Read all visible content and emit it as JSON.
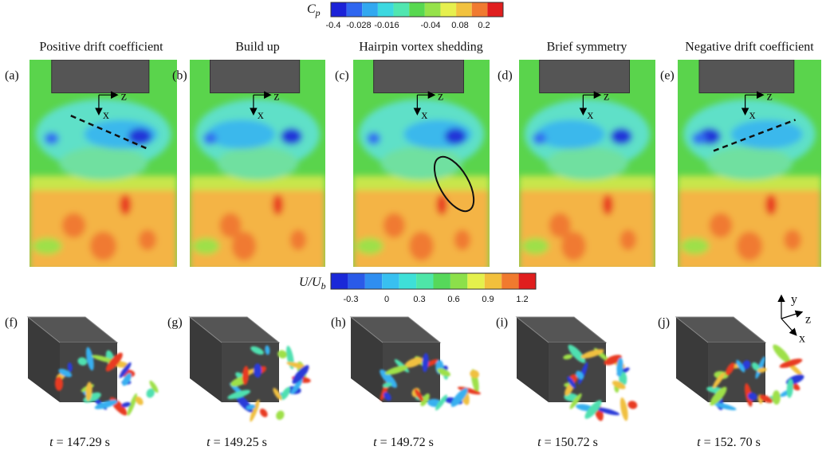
{
  "cp_colorbar": {
    "symbol": "C",
    "subscript": "p",
    "ticks": [
      "-0.4",
      "-0.028",
      "-0.016",
      "-0.04",
      "0.08",
      "0.2"
    ]
  },
  "velocity_colorbar": {
    "symbol": "U/U",
    "subscript": "b",
    "ticks": [
      "-0.3",
      "0",
      "0.3",
      "0.6",
      "0.9",
      "1.2"
    ]
  },
  "axis_x": "x",
  "axis_z": "z",
  "panels": [
    {
      "letter": "(a)",
      "title": "Positive drift coefficient"
    },
    {
      "letter": "(b)",
      "title": "Build up"
    },
    {
      "letter": "(c)",
      "title": "Hairpin vortex shedding"
    },
    {
      "letter": "(d)",
      "title": "Brief symmetry"
    },
    {
      "letter": "(e)",
      "title": "Negative drift coefficient"
    }
  ],
  "time_variable": "t",
  "snapshots": [
    {
      "letter": "(f)",
      "time": "= 147.29 s"
    },
    {
      "letter": "(g)",
      "time": "= 149.25 s"
    },
    {
      "letter": "(h)",
      "time": "= 149.72 s"
    },
    {
      "letter": "(i)",
      "time": "= 150.72 s"
    },
    {
      "letter": "(j)",
      "time": "= 152. 70 s"
    }
  ],
  "triad": {
    "y": "y",
    "z": "z",
    "x": "x"
  }
}
